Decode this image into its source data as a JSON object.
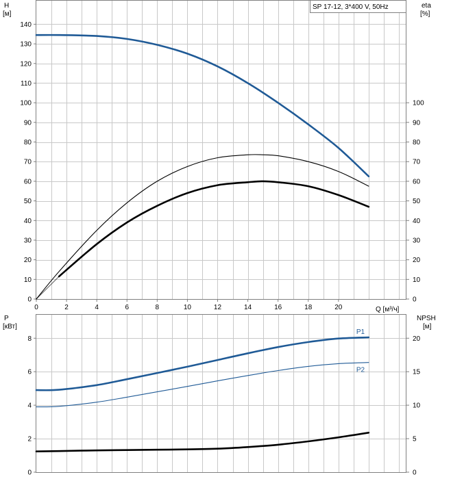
{
  "legend_box": "SP 17-12, 3*400 V, 50Hz",
  "top_axes": {
    "left_label_line1": "H",
    "left_label_line2": "[м]",
    "right_label_line1": "eta",
    "right_label_line2": "[%]",
    "x_unit_label": "Q [м³/ч]",
    "x_ticks": [
      "0",
      "2",
      "4",
      "6",
      "8",
      "10",
      "12",
      "14",
      "16",
      "18",
      "20"
    ],
    "left_ticks": [
      "0",
      "10",
      "20",
      "30",
      "40",
      "50",
      "60",
      "70",
      "80",
      "90",
      "100",
      "110",
      "120",
      "130",
      "140"
    ],
    "right_ticks": [
      "0",
      "10",
      "20",
      "30",
      "40",
      "50",
      "60",
      "70",
      "80",
      "90",
      "100"
    ]
  },
  "bottom_axes": {
    "left_label_line1": "P",
    "left_label_line2": "[кВт]",
    "right_label_line1": "NPSH",
    "right_label_line2": "[м]",
    "left_ticks": [
      "0",
      "2",
      "4",
      "6",
      "8"
    ],
    "right_ticks": [
      "0",
      "5",
      "10",
      "15",
      "20"
    ]
  },
  "colors": {
    "head": "#1f5a96",
    "power": "#1f5a96",
    "efficiency": "#000000",
    "npsh": "#000000",
    "grid": "#c8c8c8",
    "frame": "#7f7f7f"
  },
  "chart_data": [
    {
      "type": "line",
      "title": "SP 17-12, 3*400 V, 50Hz",
      "xlabel": "Q [м³/ч]",
      "ylabel": "H [м]",
      "y2label": "eta [%]",
      "xlim": [
        0,
        24.5
      ],
      "ylim": [
        0,
        152
      ],
      "y2lim": [
        0,
        152
      ],
      "grid": true,
      "series": [
        {
          "key": "head",
          "axis": "left",
          "style": "thick",
          "x": [
            0,
            1.5,
            4,
            6,
            8,
            10,
            12,
            14,
            16,
            18,
            20,
            22
          ],
          "y": [
            134.5,
            134.5,
            134,
            132.5,
            129.5,
            125,
            118.5,
            110,
            100,
            89,
            77,
            62.5
          ]
        },
        {
          "key": "head_ext",
          "axis": "left",
          "style": "thin",
          "x": [
            0,
            1.5
          ],
          "y": [
            134.5,
            134.5
          ]
        },
        {
          "key": "eta_thin",
          "axis": "right",
          "style": "thin",
          "x": [
            0,
            1.5,
            4,
            6,
            8,
            10,
            12,
            14,
            15,
            16,
            18,
            20,
            22
          ],
          "y": [
            0,
            14,
            35,
            49,
            60,
            67.5,
            72,
            73.5,
            73.5,
            73,
            70,
            65,
            57.5
          ]
        },
        {
          "key": "eta_thick",
          "axis": "right",
          "style": "thick",
          "x": [
            1.5,
            4,
            6,
            8,
            10,
            12,
            14,
            15,
            16,
            18,
            20,
            22
          ],
          "y": [
            11.5,
            28,
            39,
            47.5,
            54,
            58,
            59.5,
            60,
            59.5,
            57.5,
            53,
            47
          ]
        },
        {
          "key": "eta_ext",
          "axis": "right",
          "style": "thin",
          "x": [
            0,
            1.5
          ],
          "y": [
            0,
            11.5
          ]
        }
      ]
    },
    {
      "type": "line",
      "xlabel": "",
      "ylabel": "P [кВт]",
      "y2label": "NPSH [м]",
      "xlim": [
        0,
        24.5
      ],
      "ylim": [
        0,
        9.4
      ],
      "y2lim": [
        0,
        23.5
      ],
      "grid": true,
      "series": [
        {
          "key": "P1",
          "name": "P1",
          "axis": "left",
          "style": "thick",
          "x": [
            0,
            1.5,
            4,
            6,
            8,
            10,
            12,
            14,
            16,
            18,
            20,
            22
          ],
          "y": [
            4.9,
            4.92,
            5.2,
            5.55,
            5.92,
            6.3,
            6.7,
            7.1,
            7.47,
            7.77,
            7.98,
            8.05
          ]
        },
        {
          "key": "P2",
          "name": "P2",
          "axis": "left",
          "style": "thin",
          "x": [
            0,
            1.5,
            4,
            6,
            8,
            10,
            12,
            14,
            16,
            18,
            20,
            22
          ],
          "y": [
            3.9,
            3.93,
            4.18,
            4.48,
            4.8,
            5.12,
            5.45,
            5.77,
            6.07,
            6.32,
            6.48,
            6.55
          ]
        },
        {
          "key": "npsh",
          "axis": "right",
          "style": "thick",
          "x": [
            0,
            1.5,
            4,
            6,
            8,
            10,
            12,
            14,
            16,
            18,
            20,
            22
          ],
          "y": [
            3.1,
            3.15,
            3.25,
            3.3,
            3.35,
            3.4,
            3.5,
            3.75,
            4.1,
            4.6,
            5.2,
            5.9
          ]
        }
      ]
    }
  ]
}
